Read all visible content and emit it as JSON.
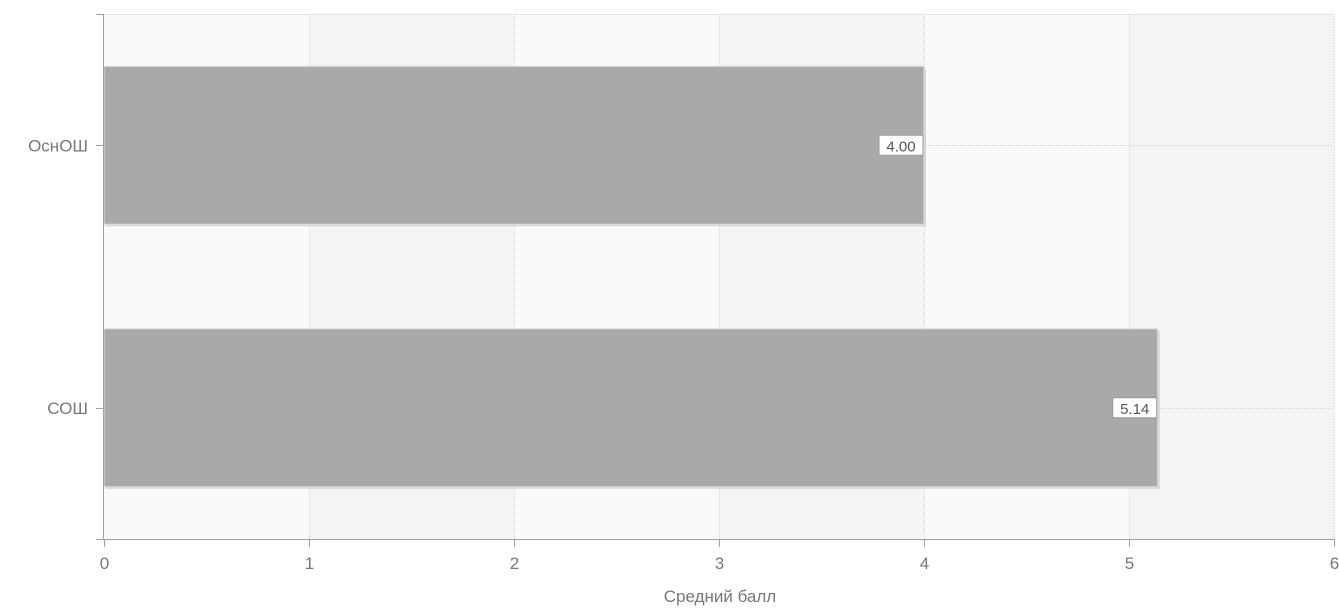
{
  "chart_data": {
    "type": "bar",
    "orientation": "horizontal",
    "categories": [
      "ОснОШ",
      "СОШ"
    ],
    "values": [
      4.0,
      5.14
    ],
    "value_labels": [
      "4.00",
      "5.14"
    ],
    "xlabel": "Средний балл",
    "ylabel": "",
    "title": "",
    "xlim": [
      0,
      6
    ],
    "x_ticks": [
      "0",
      "1",
      "2",
      "3",
      "4",
      "5",
      "6"
    ],
    "grid": true,
    "legend": "none",
    "colors": {
      "bar": "#a9a9a9",
      "bar_shadow": "#d4d4d4",
      "band_light": "#fafafa",
      "band_dark": "#f4f4f4",
      "grid": "#d6d6d6",
      "axis": "#a0a0a0",
      "tick_text": "#777777",
      "label_text": "#777777",
      "value_label_bg": "#ffffff",
      "value_label_border": "#999999",
      "value_label_text": "#555555"
    }
  }
}
